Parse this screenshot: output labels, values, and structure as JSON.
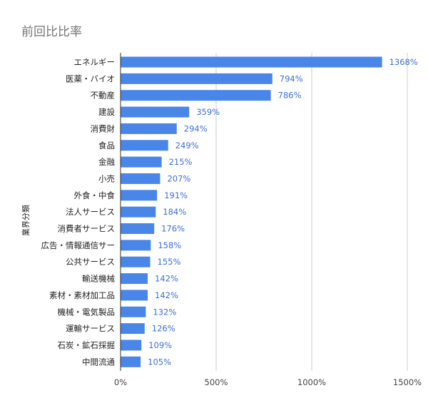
{
  "chart_data": {
    "type": "bar",
    "orientation": "horizontal",
    "title": "前回比比率",
    "ylabel": "業界分類",
    "xlabel": "",
    "xlim": [
      0,
      1500
    ],
    "xticks": [
      "0%",
      "500%",
      "1000%",
      "1500%"
    ],
    "xtick_values": [
      0,
      500,
      1000,
      1500
    ],
    "grid": true,
    "legend": "none",
    "bar_color": "#4a86e8",
    "label_color": "#3c6fd8",
    "categories": [
      "エネルギー",
      "医薬・バイオ",
      "不動産",
      "建設",
      "消費財",
      "食品",
      "金融",
      "小売",
      "外食・中食",
      "法人サービス",
      "消費者サービス",
      "広告・情報通信サー",
      "公共サービス",
      "輸送機械",
      "素材・素材加工品",
      "機械・電気製品",
      "運輸サービス",
      "石炭・鉱石採掘",
      "中間流通"
    ],
    "values": [
      1368,
      794,
      786,
      359,
      294,
      249,
      215,
      207,
      191,
      184,
      176,
      158,
      155,
      142,
      142,
      132,
      126,
      109,
      105
    ],
    "value_labels": [
      "1368%",
      "794%",
      "786%",
      "359%",
      "294%",
      "249%",
      "215%",
      "207%",
      "191%",
      "184%",
      "176%",
      "158%",
      "155%",
      "142%",
      "142%",
      "132%",
      "126%",
      "109%",
      "105%"
    ]
  }
}
